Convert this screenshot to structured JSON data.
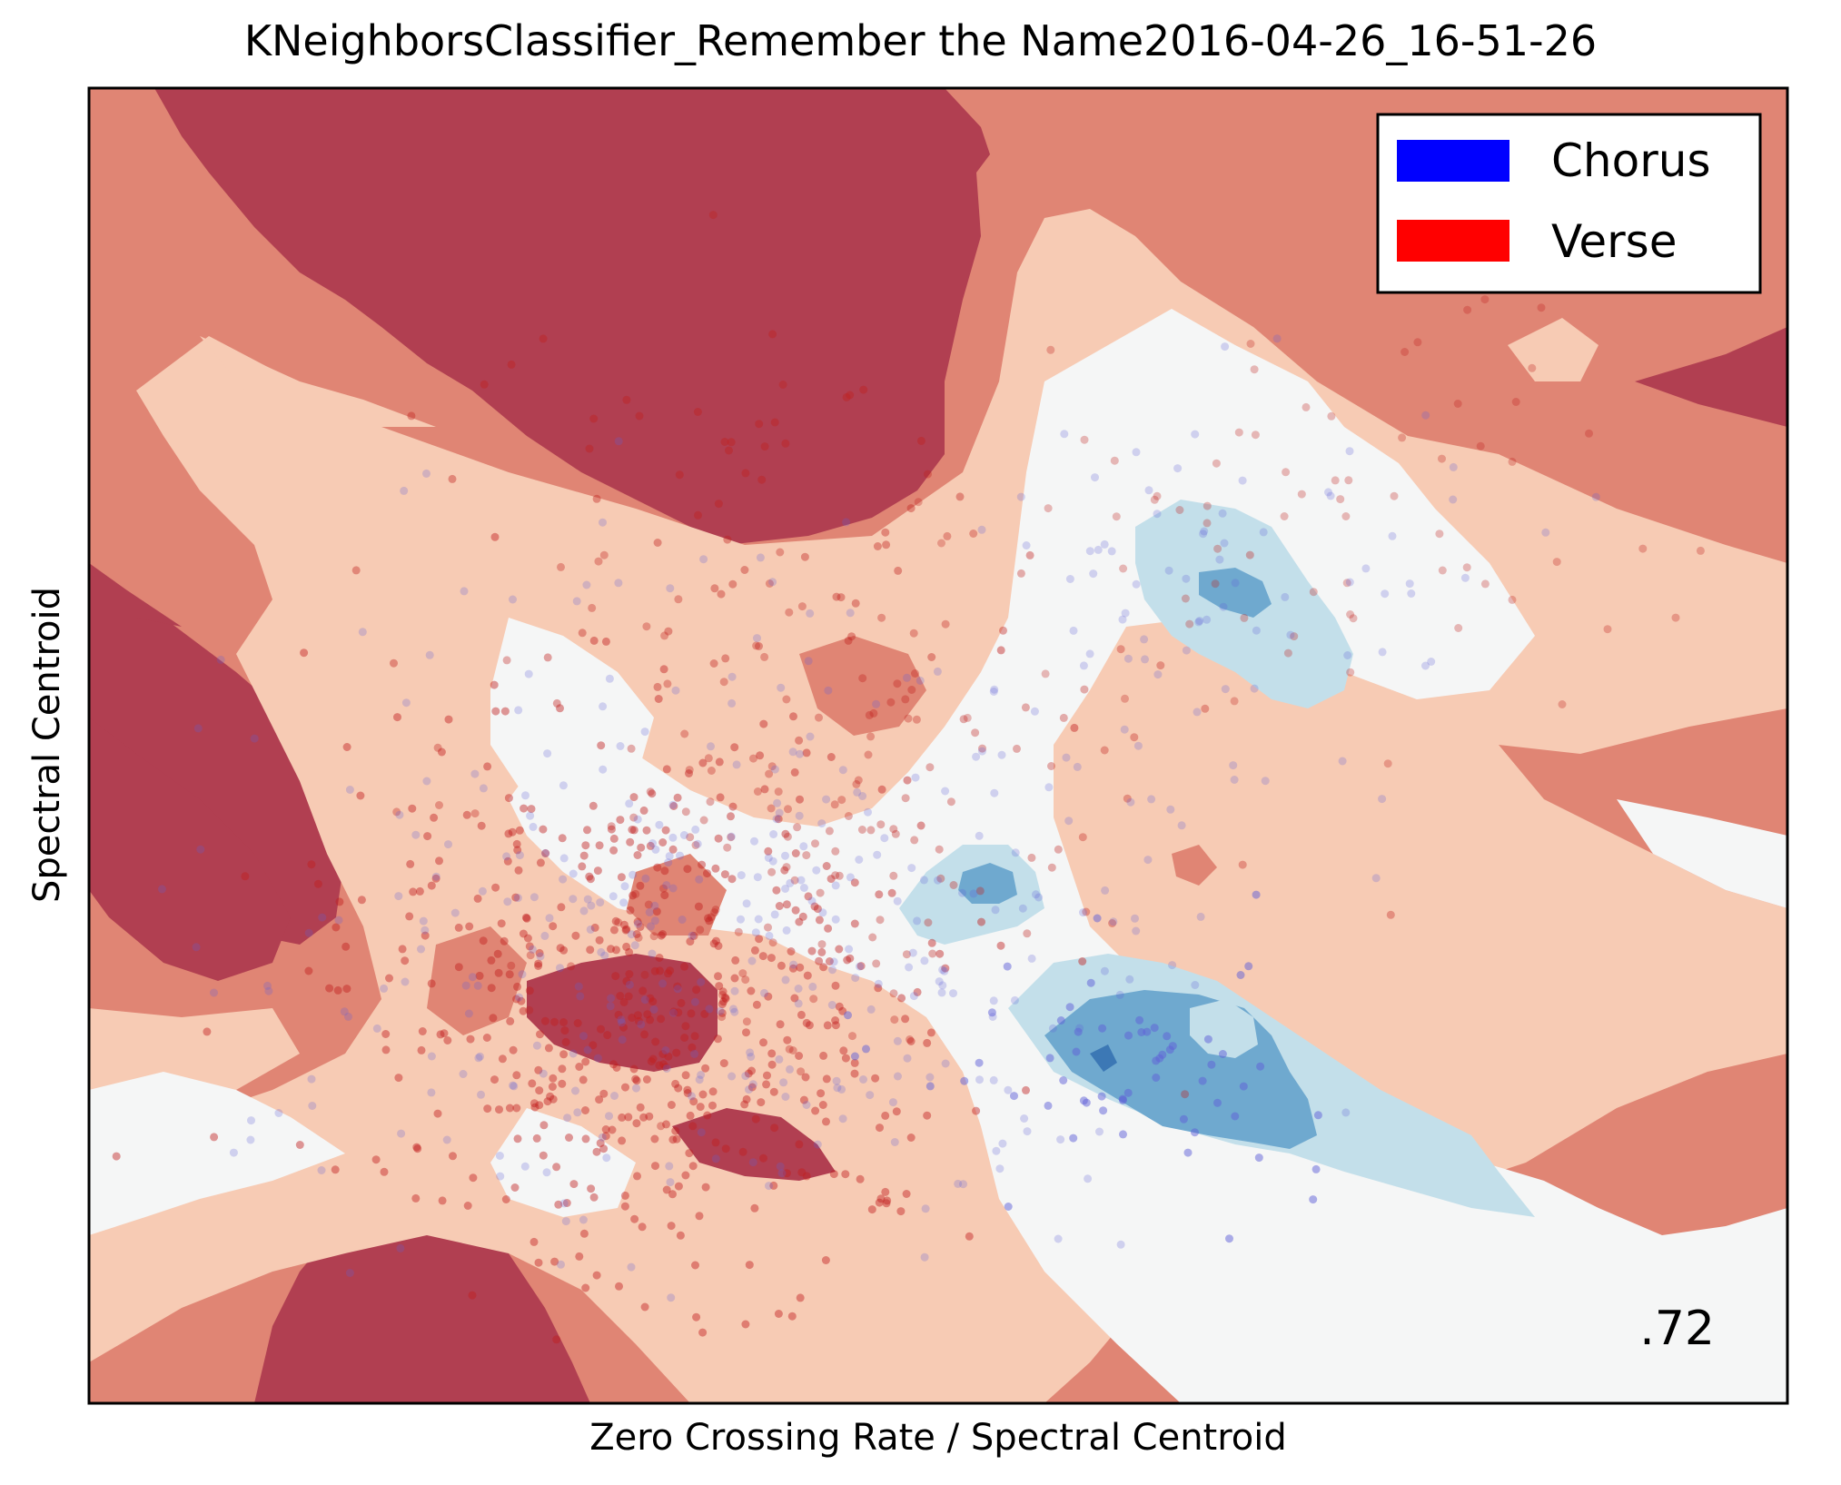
{
  "chart_data": {
    "type": "scatter",
    "title": "KNeighborsClassifier_Remember the Name2016-04-26_16-51-26",
    "xlabel": "Zero Crossing Rate / Spectral Centroid",
    "ylabel": "Spectral Centroid",
    "score": ".72",
    "grid": false,
    "ticks": false,
    "legend_placement": "top-right",
    "legend": [
      {
        "label": "Chorus",
        "color": "#0000ff"
      },
      {
        "label": "Verse",
        "color": "#ff0000"
      }
    ],
    "colors": {
      "verse_strong": "#b13f51",
      "verse_mid": "#e08574",
      "verse_light": "#f7cbb4",
      "neutral": "#f5f6f6",
      "chorus_light": "#c3dfea",
      "chorus_mid": "#6fa9cf",
      "chorus_strong": "#3c78b5",
      "chorus_point": "#6060d8",
      "verse_point": "#c0201e"
    }
  }
}
